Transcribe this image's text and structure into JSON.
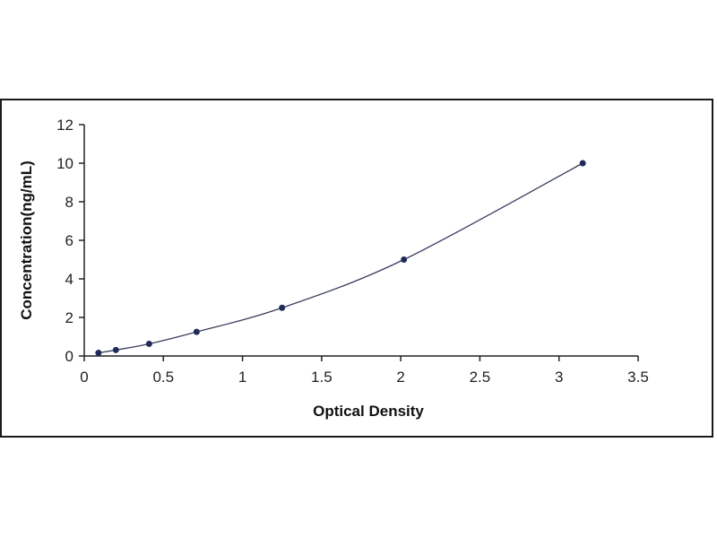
{
  "colors": {
    "axis": "#222222",
    "curve": "#3a3f5c",
    "point": "#1f2a5a",
    "frame": "#1a1a1a"
  },
  "chart_data": {
    "type": "scatter",
    "title": "",
    "xlabel": "Optical Density",
    "ylabel": "Concentration(ng/mL)",
    "xlim": [
      0,
      3.5
    ],
    "ylim": [
      0,
      12
    ],
    "xticks": [
      0,
      0.5,
      1,
      1.5,
      2,
      2.5,
      3,
      3.5
    ],
    "xtick_labels": [
      "0",
      "0.5",
      "1",
      "1.5",
      "2",
      "2.5",
      "3",
      "3.5"
    ],
    "yticks": [
      0,
      2,
      4,
      6,
      8,
      10,
      12
    ],
    "ytick_labels": [
      "0",
      "2",
      "4",
      "6",
      "8",
      "10",
      "12"
    ],
    "grid": false,
    "legend": "none",
    "fit": "smooth curve through points",
    "series": [
      {
        "x": [
          0.09,
          0.2,
          0.41,
          0.71,
          1.25,
          2.02,
          3.15
        ],
        "y": [
          0.16,
          0.31,
          0.63,
          1.25,
          2.5,
          5,
          10
        ]
      }
    ]
  }
}
